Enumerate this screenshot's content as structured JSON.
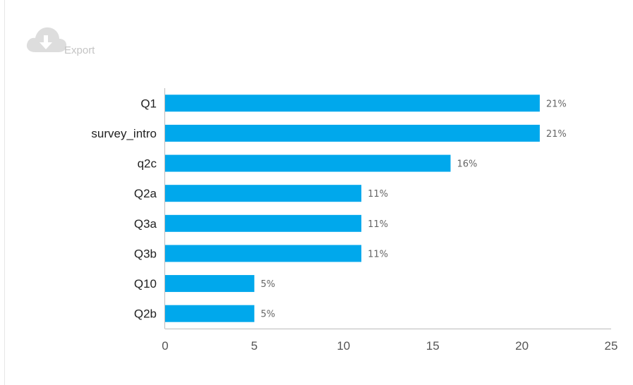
{
  "toolbar": {
    "export_label": "Export",
    "export_icon": "cloud-download-icon"
  },
  "colors": {
    "bar": "#00a8ec",
    "axis": "#bbbbbb",
    "icon": "#dddddd"
  },
  "chart_data": {
    "type": "bar",
    "orientation": "horizontal",
    "categories": [
      "Q1",
      "survey_intro",
      "q2c",
      "Q2a",
      "Q3a",
      "Q3b",
      "Q10",
      "Q2b"
    ],
    "values": [
      21,
      21,
      16,
      11,
      11,
      11,
      5,
      5
    ],
    "value_labels": [
      "21%",
      "21%",
      "16%",
      "11%",
      "11%",
      "11%",
      "5%",
      "5%"
    ],
    "x_ticks": [
      0,
      5,
      10,
      15,
      20,
      25
    ],
    "xlim": [
      0,
      25
    ],
    "grid": false,
    "legend": "none"
  }
}
